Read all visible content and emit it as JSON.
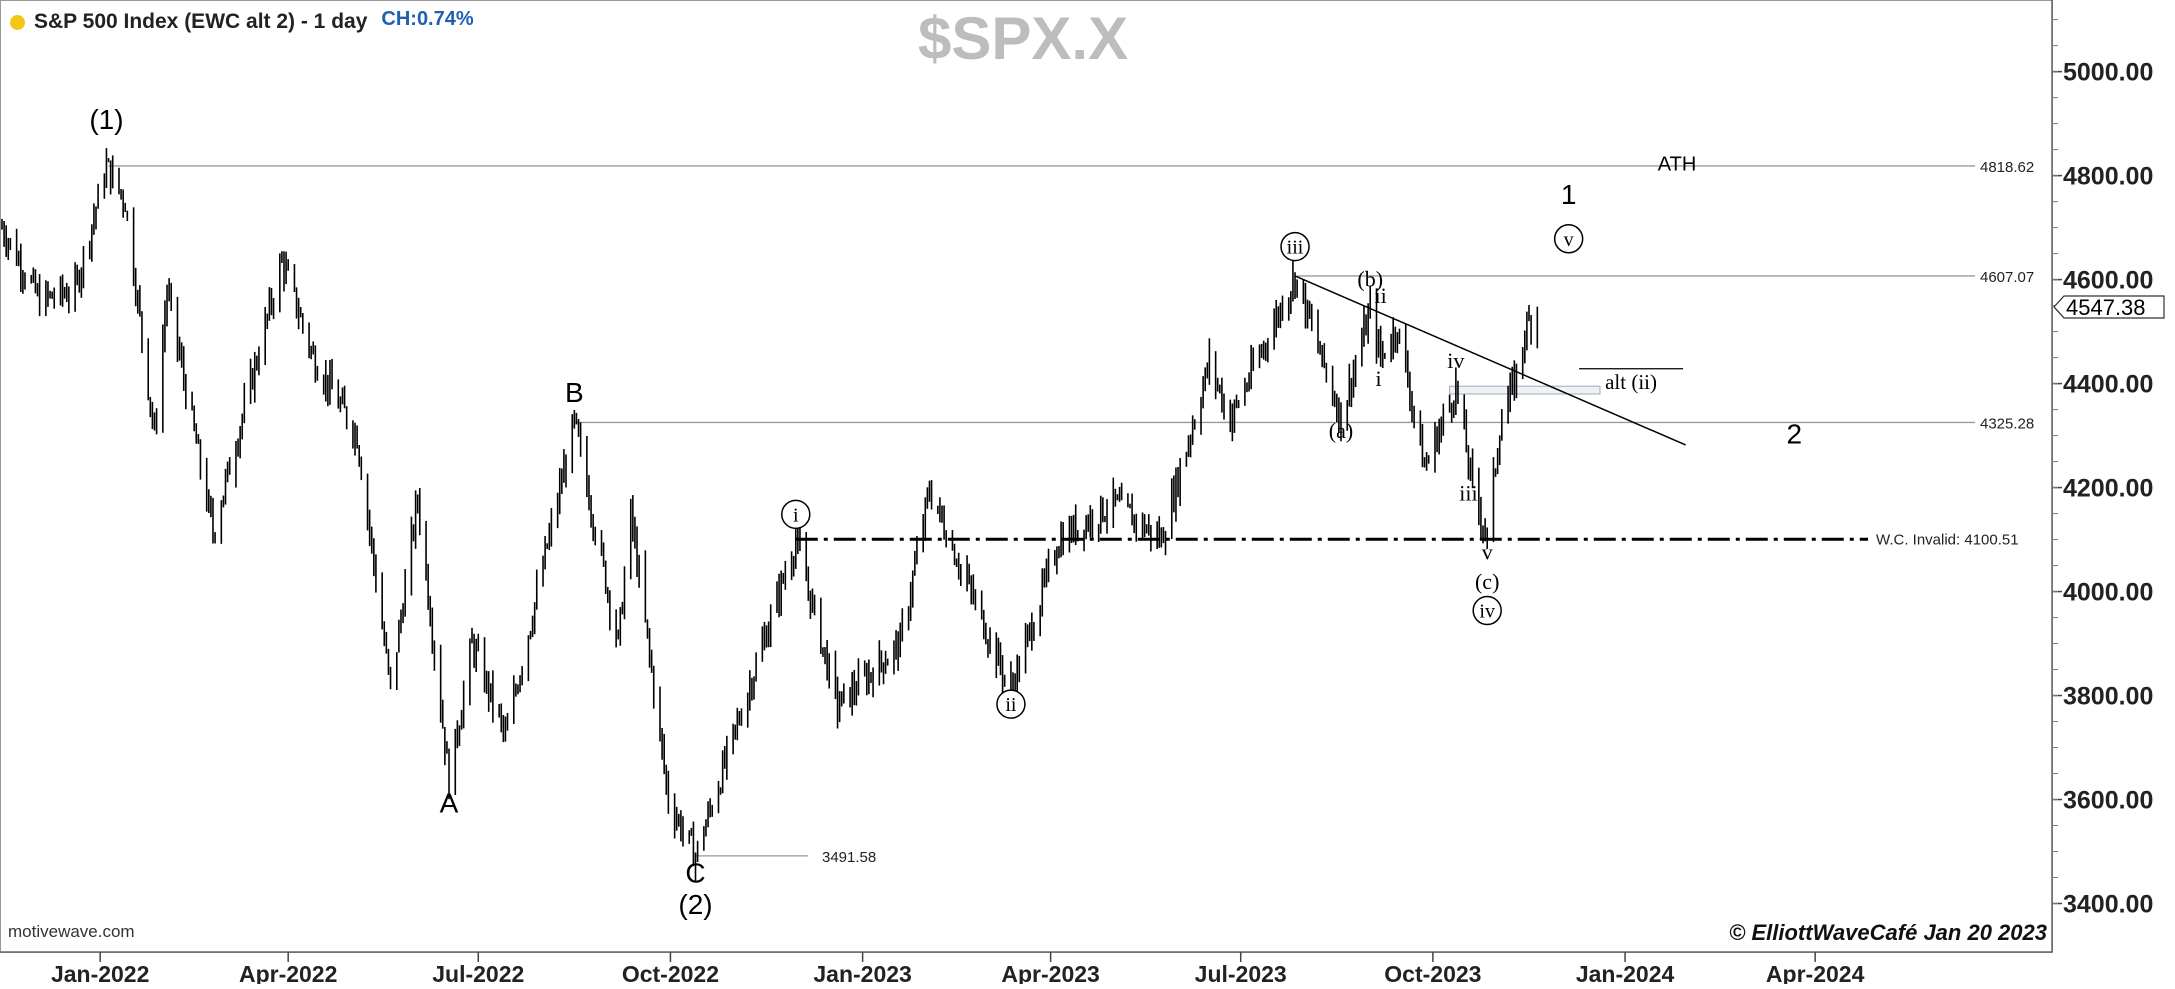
{
  "header": {
    "title": "S&P 500 Index (EWC alt 2) - 1 day",
    "change": "CH:0.74%",
    "symbol": "$SPX.X",
    "status_dot_color": "#f5c518"
  },
  "watermark": "motivewave.com",
  "copyright": "© ElliottWaveCafé Jan 20 2023",
  "chart_data": {
    "type": "bar",
    "ylim": [
      3350,
      5160
    ],
    "y_ticks": [
      "5000.00",
      "4800.00",
      "4600.00",
      "4400.00",
      "4200.00",
      "4000.00",
      "3800.00",
      "3600.00",
      "3400.00"
    ],
    "x_ticks": [
      "Jan-2022",
      "Apr-2022",
      "Jul-2022",
      "Oct-2022",
      "Jan-2023",
      "Apr-2023",
      "Jul-2023",
      "Oct-2023",
      "Jan-2024",
      "Apr-2024"
    ],
    "current_price": "4547.38",
    "price_path": [
      [
        "2021-11-15",
        4700
      ],
      [
        "2021-12-03",
        4560
      ],
      [
        "2021-12-20",
        4580
      ],
      [
        "2022-01-04",
        4818
      ],
      [
        "2022-01-13",
        4750
      ],
      [
        "2022-01-27",
        4300
      ],
      [
        "2022-02-02",
        4580
      ],
      [
        "2022-02-24",
        4114
      ],
      [
        "2022-03-29",
        4637
      ],
      [
        "2022-04-13",
        4450
      ],
      [
        "2022-05-04",
        4300
      ],
      [
        "2022-05-20",
        3810
      ],
      [
        "2022-06-02",
        4180
      ],
      [
        "2022-06-17",
        3636
      ],
      [
        "2022-06-28",
        3900
      ],
      [
        "2022-07-14",
        3720
      ],
      [
        "2022-08-16",
        4325
      ],
      [
        "2022-09-06",
        3900
      ],
      [
        "2022-09-12",
        4150
      ],
      [
        "2022-09-30",
        3600
      ],
      [
        "2022-10-13",
        3491
      ],
      [
        "2022-11-30",
        4100
      ],
      [
        "2022-12-20",
        3780
      ],
      [
        "2023-01-19",
        3900
      ],
      [
        "2023-02-02",
        4195
      ],
      [
        "2023-03-13",
        3808
      ],
      [
        "2023-04-05",
        4100
      ],
      [
        "2023-05-01",
        4170
      ],
      [
        "2023-05-24",
        4100
      ],
      [
        "2023-06-16",
        4440
      ],
      [
        "2023-06-26",
        4330
      ],
      [
        "2023-07-27",
        4607
      ],
      [
        "2023-08-18",
        4335
      ],
      [
        "2023-09-01",
        4541
      ],
      [
        "2023-09-06",
        4450
      ],
      [
        "2023-09-14",
        4510
      ],
      [
        "2023-09-27",
        4238
      ],
      [
        "2023-10-12",
        4393
      ],
      [
        "2023-10-20",
        4200
      ],
      [
        "2023-10-27",
        4103
      ],
      [
        "2023-11-02",
        4317
      ],
      [
        "2023-11-10",
        4415
      ],
      [
        "2023-11-14",
        4500
      ],
      [
        "2023-11-20",
        4547
      ]
    ],
    "horizontal_levels": [
      {
        "value": 4818.62,
        "label": "4818.62"
      },
      {
        "value": 4607.07,
        "label": "4607.07"
      },
      {
        "value": 4325.28,
        "label": "4325.28"
      },
      {
        "value": 4100.51,
        "label": "W.C. Invalid: 4100.51"
      },
      {
        "value": 3491.58,
        "label": "3491.58"
      }
    ],
    "trendline": [
      [
        "2023-07-27",
        4607
      ],
      [
        "2024-01-30",
        4282
      ]
    ],
    "wave_labels": [
      {
        "text": "(1)",
        "date": "2022-01-04",
        "price": 4890,
        "style": "paren"
      },
      {
        "text": "A",
        "date": "2022-06-17",
        "price": 3575,
        "style": "letter"
      },
      {
        "text": "B",
        "date": "2022-08-16",
        "price": 4365,
        "style": "letter"
      },
      {
        "text": "C",
        "date": "2022-10-13",
        "price": 3440,
        "style": "letter"
      },
      {
        "text": "(2)",
        "date": "2022-10-13",
        "price": 3380,
        "style": "paren"
      },
      {
        "text": "i",
        "date": "2022-11-30",
        "price": 4135,
        "style": "circle"
      },
      {
        "text": "ii",
        "date": "2023-03-13",
        "price": 3770,
        "style": "circle"
      },
      {
        "text": "iii",
        "date": "2023-07-27",
        "price": 4650,
        "style": "circle"
      },
      {
        "text": "(a)",
        "date": "2023-08-18",
        "price": 4295,
        "style": "serif"
      },
      {
        "text": "(b)",
        "date": "2023-09-01",
        "price": 4587,
        "style": "serif"
      },
      {
        "text": "ii",
        "date": "2023-09-06",
        "price": 4555,
        "style": "serif"
      },
      {
        "text": "i",
        "date": "2023-09-05",
        "price": 4395,
        "style": "serif"
      },
      {
        "text": "iv",
        "date": "2023-10-12",
        "price": 4430,
        "style": "serif"
      },
      {
        "text": "iii",
        "date": "2023-10-18",
        "price": 4175,
        "style": "serif"
      },
      {
        "text": "v",
        "date": "2023-10-27",
        "price": 4062,
        "style": "serif"
      },
      {
        "text": "(c)",
        "date": "2023-10-27",
        "price": 4005,
        "style": "serif"
      },
      {
        "text": "iv",
        "date": "2023-10-27",
        "price": 3950,
        "style": "circle"
      },
      {
        "text": "1",
        "date": "2023-12-05",
        "price": 4745,
        "style": "letter"
      },
      {
        "text": "v",
        "date": "2023-12-05",
        "price": 4665,
        "style": "circle"
      },
      {
        "text": "ATH",
        "date": "2024-01-01",
        "price": 4810,
        "style": "small"
      },
      {
        "text": "2",
        "date": "2024-03-22",
        "price": 4285,
        "style": "letter"
      }
    ],
    "alt_label": {
      "text": "alt (ii)",
      "date": "2024-01-01",
      "price": 4390
    },
    "alt_box": {
      "date_from": "2023-10-09",
      "date_to": "2023-12-20",
      "price_from": 4380,
      "price_to": 4395
    }
  }
}
